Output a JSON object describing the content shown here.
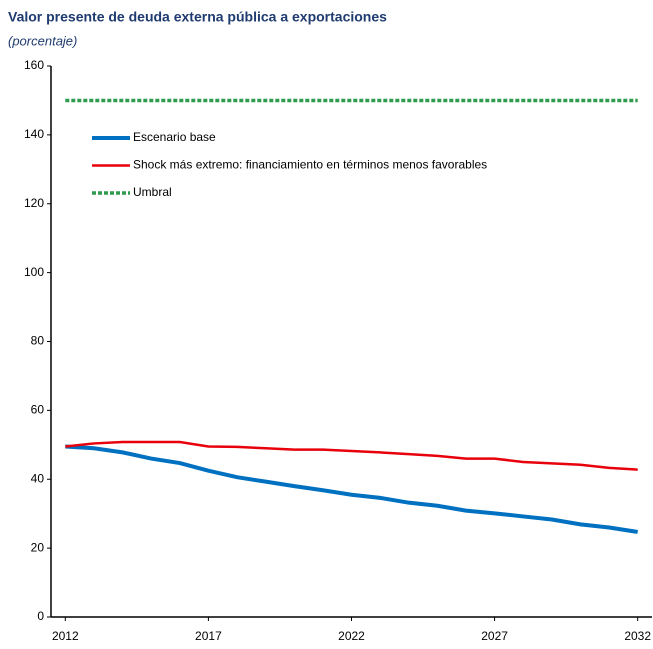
{
  "chart_data": {
    "type": "line",
    "title": "Valor presente de deuda externa pública a exportaciones",
    "subtitle": "(porcentaje)",
    "x": [
      2012,
      2013,
      2014,
      2015,
      2016,
      2017,
      2018,
      2019,
      2020,
      2021,
      2022,
      2023,
      2024,
      2025,
      2026,
      2027,
      2028,
      2029,
      2030,
      2031,
      2032
    ],
    "series": [
      {
        "name": "Escenario base",
        "color": "#0070c0",
        "values": [
          49.5,
          49,
          47.8,
          46,
          44.7,
          42.5,
          40.6,
          39.3,
          38,
          36.8,
          35.5,
          34.6,
          33.2,
          32.3,
          30.9,
          30.1,
          29.2,
          28.3,
          26.9,
          26,
          24.7
        ]
      },
      {
        "name": "Shock más extremo: financiamiento en términos menos favorables",
        "color": "#e8000b",
        "values": [
          49.5,
          50.4,
          50.8,
          50.8,
          50.8,
          49.5,
          49.4,
          49,
          48.6,
          48.6,
          48.2,
          47.8,
          47.3,
          46.8,
          46,
          46,
          45,
          44.6,
          44.2,
          43.3,
          42.8
        ]
      },
      {
        "name": "Umbral",
        "color": "#2e9b4e",
        "dashed": true,
        "values": [
          150,
          150,
          150,
          150,
          150,
          150,
          150,
          150,
          150,
          150,
          150,
          150,
          150,
          150,
          150,
          150,
          150,
          150,
          150,
          150,
          150
        ]
      }
    ],
    "xlim": [
      2011.5,
      2032.5
    ],
    "xticks": [
      2012,
      2017,
      2022,
      2027,
      2032
    ],
    "ylim": [
      0,
      160
    ],
    "yticks": [
      0,
      20,
      40,
      60,
      80,
      100,
      120,
      140,
      160
    ],
    "legend": "upper left"
  }
}
